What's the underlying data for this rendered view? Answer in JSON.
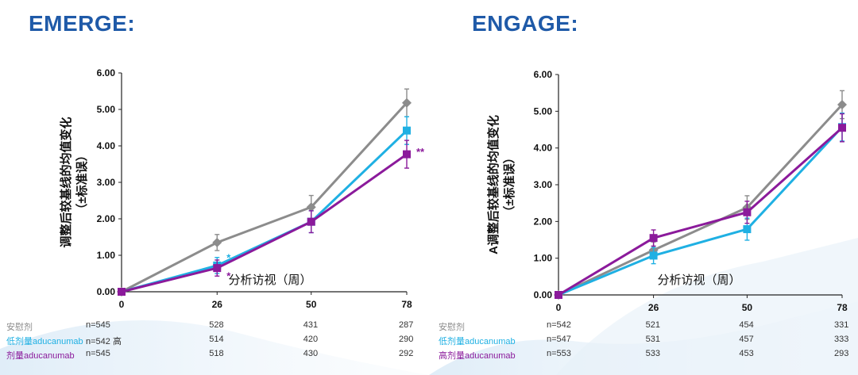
{
  "colors": {
    "placebo": "#8c8c8c",
    "low_dose": "#1fb0e3",
    "high_dose": "#8b1a9b",
    "title": "#1f5aa8"
  },
  "chart_data": [
    {
      "type": "line",
      "title": "EMERGE:",
      "ylabel_line1": "调整后较基线的均值变化",
      "ylabel_line2": "（±标准误）",
      "xlabel": "分析访视（周）",
      "x": [
        0,
        26,
        50,
        78
      ],
      "x_tick_labels": [
        "0",
        "26",
        "50",
        "78"
      ],
      "y_tick_labels": [
        "0.00",
        "1.00",
        "2.00",
        "3.00",
        "4.00",
        "5.00",
        "6.00"
      ],
      "ylim": [
        0,
        6
      ],
      "series": [
        {
          "key": "placebo",
          "values": [
            0,
            1.35,
            2.32,
            5.18
          ],
          "errors": [
            0,
            0.22,
            0.32,
            0.38
          ]
        },
        {
          "key": "low_dose",
          "values": [
            0,
            0.72,
            1.92,
            4.42
          ],
          "errors": [
            0,
            0.22,
            0.3,
            0.38
          ]
        },
        {
          "key": "high_dose",
          "values": [
            0,
            0.65,
            1.92,
            3.77
          ],
          "errors": [
            0,
            0.22,
            0.3,
            0.38
          ]
        }
      ],
      "annotations": [
        {
          "text": "*",
          "x": 26,
          "y": 0.95,
          "series": "low_dose"
        },
        {
          "text": "*",
          "x": 26,
          "y": 0.45,
          "series": "high_dose"
        },
        {
          "text": "**",
          "x": 78,
          "y": 3.85,
          "series": "high_dose"
        }
      ],
      "n_table": {
        "rows": [
          {
            "label": "安慰剂",
            "label_color": "#8c8c8c",
            "first": "n=545",
            "values": [
              "528",
              "431",
              "287"
            ]
          },
          {
            "label": "低剂量aducanumab",
            "label_color": "#1fb0e3",
            "first": "n=542  高",
            "values": [
              "514",
              "420",
              "290"
            ]
          },
          {
            "label": "剂量aducanumab",
            "label_color": "#8b1a9b",
            "first": "n=545",
            "values": [
              "518",
              "430",
              "292"
            ]
          }
        ]
      }
    },
    {
      "type": "line",
      "title": "ENGAGE:",
      "ylabel_line1": "A调整后较基线的均值变化",
      "ylabel_line2": "（±标准误）",
      "xlabel": "分析访视（周）",
      "x": [
        0,
        26,
        50,
        78
      ],
      "x_tick_labels": [
        "0",
        "26",
        "50",
        "78"
      ],
      "y_tick_labels": [
        "0.00",
        "1.00",
        "2.00",
        "3.00",
        "4.00",
        "5.00",
        "6.00"
      ],
      "ylim": [
        0,
        6
      ],
      "series": [
        {
          "key": "placebo",
          "values": [
            0,
            1.22,
            2.38,
            5.18
          ],
          "errors": [
            0,
            0.22,
            0.32,
            0.38
          ]
        },
        {
          "key": "low_dose",
          "values": [
            0,
            1.07,
            1.79,
            4.57
          ],
          "errors": [
            0,
            0.22,
            0.3,
            0.38
          ]
        },
        {
          "key": "high_dose",
          "values": [
            0,
            1.55,
            2.25,
            4.55
          ],
          "errors": [
            0,
            0.22,
            0.3,
            0.38
          ]
        }
      ],
      "annotations": [],
      "n_table": {
        "rows": [
          {
            "label": "安慰剂",
            "label_color": "#8c8c8c",
            "first": "n=542",
            "values": [
              "521",
              "454",
              "331"
            ]
          },
          {
            "label": "低剂量aducanumab",
            "label_color": "#1fb0e3",
            "first": "n=547",
            "values": [
              "531",
              "457",
              "333"
            ]
          },
          {
            "label": "高剂量aducanumab",
            "label_color": "#8b1a9b",
            "first": "n=553",
            "values": [
              "533",
              "453",
              "293"
            ]
          }
        ]
      }
    }
  ]
}
